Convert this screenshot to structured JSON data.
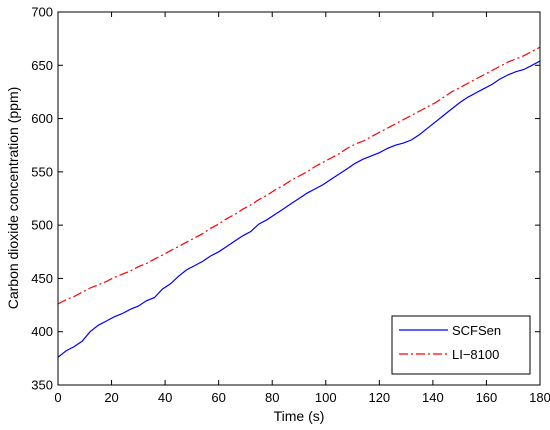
{
  "chart_data": {
    "type": "line",
    "xlabel": "Time (s)",
    "ylabel": "Carbon dioxide concentration (ppm)",
    "xlim": [
      0,
      180
    ],
    "ylim": [
      350,
      700
    ],
    "xticks": [
      "0",
      "20",
      "40",
      "60",
      "80",
      "100",
      "120",
      "140",
      "160",
      "180"
    ],
    "yticks": [
      "350",
      "400",
      "450",
      "500",
      "550",
      "600",
      "650",
      "700"
    ],
    "grid": false,
    "legend_position": "bottom-right",
    "series": [
      {
        "name": "SCFSen",
        "color": "#0000ff",
        "style": "solid",
        "x": [
          0,
          3,
          6,
          9,
          12,
          15,
          18,
          21,
          24,
          27,
          30,
          33,
          36,
          39,
          42,
          45,
          48,
          51,
          54,
          57,
          60,
          63,
          66,
          69,
          72,
          75,
          78,
          81,
          84,
          87,
          90,
          93,
          96,
          99,
          102,
          105,
          108,
          111,
          114,
          117,
          120,
          123,
          126,
          129,
          132,
          135,
          138,
          141,
          144,
          147,
          150,
          153,
          156,
          159,
          162,
          165,
          168,
          171,
          174,
          177,
          180
        ],
        "values": [
          376,
          382,
          386,
          391,
          400,
          406,
          410,
          414,
          417,
          421,
          424,
          429,
          432,
          440,
          445,
          452,
          458,
          462,
          466,
          471,
          475,
          480,
          485,
          490,
          494,
          501,
          505,
          510,
          515,
          520,
          525,
          530,
          534,
          538,
          543,
          548,
          553,
          558,
          562,
          565,
          568,
          572,
          575,
          577,
          580,
          585,
          591,
          597,
          603,
          609,
          615,
          620,
          624,
          628,
          632,
          637,
          641,
          644,
          646,
          650,
          654
        ]
      },
      {
        "name": "LI−8100",
        "color": "#ff0000",
        "style": "dashdot",
        "x": [
          0,
          3,
          6,
          9,
          12,
          15,
          18,
          21,
          24,
          27,
          30,
          33,
          36,
          39,
          42,
          45,
          48,
          51,
          54,
          57,
          60,
          63,
          66,
          69,
          72,
          75,
          78,
          81,
          84,
          87,
          90,
          93,
          96,
          99,
          102,
          105,
          108,
          111,
          114,
          117,
          120,
          123,
          126,
          129,
          132,
          135,
          138,
          141,
          144,
          147,
          150,
          153,
          156,
          159,
          162,
          165,
          168,
          171,
          174,
          177,
          180
        ],
        "values": [
          426,
          430,
          433,
          437,
          441,
          444,
          447,
          451,
          454,
          457,
          461,
          464,
          468,
          472,
          476,
          480,
          484,
          488,
          492,
          497,
          501,
          506,
          510,
          515,
          519,
          524,
          528,
          533,
          537,
          542,
          546,
          550,
          555,
          559,
          563,
          567,
          572,
          576,
          579,
          583,
          587,
          591,
          595,
          599,
          603,
          607,
          611,
          615,
          620,
          625,
          629,
          633,
          637,
          641,
          645,
          649,
          653,
          656,
          659,
          663,
          667
        ]
      }
    ]
  }
}
